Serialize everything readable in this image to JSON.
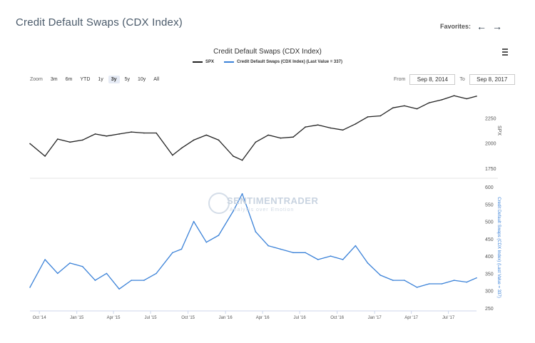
{
  "page": {
    "title": "Credit Default Swaps (CDX Index)"
  },
  "favorites": {
    "label": "Favorites:",
    "back_icon": "arrow-left-icon",
    "forward_icon": "arrow-right-icon"
  },
  "toolbar": {
    "zoom_label": "Zoom",
    "zoom_options": [
      "3m",
      "6m",
      "YTD",
      "1y",
      "3y",
      "5y",
      "10y",
      "All"
    ],
    "zoom_selected": "3y",
    "from_label": "From",
    "from_value": "Sep 8, 2014",
    "to_label": "To",
    "to_value": "Sep 8, 2017"
  },
  "watermark": {
    "name": "SENTIMENTRADER",
    "tagline": "Analysis over Emotion"
  },
  "chart_data": {
    "type": "line",
    "title": "Credit Default Swaps (CDX Index)",
    "legend": [
      "SPX",
      "Credit Default Swaps (CDX Index) (Last Value = 337)"
    ],
    "legend_placement": "top-center",
    "x_ticks": [
      "Oct '14",
      "Jan '15",
      "Apr '15",
      "Jul '15",
      "Oct '15",
      "Jan '16",
      "Apr '16",
      "Jul '16",
      "Oct '16",
      "Jan '17",
      "Apr '17",
      "Jul '17"
    ],
    "x_range": [
      "2014-09-08",
      "2017-09-08"
    ],
    "colors": {
      "spx": "#222222",
      "cdx": "#3b82d8"
    },
    "panels": [
      {
        "name": "SPX",
        "axis_label": "SPX",
        "axis_side": "right",
        "ylim": [
          1750,
          2500
        ],
        "y_ticks": [
          1750,
          2000,
          2250
        ],
        "x": [
          "2014-09-08",
          "2014-10-15",
          "2014-11-15",
          "2014-12-15",
          "2015-01-15",
          "2015-02-15",
          "2015-03-15",
          "2015-04-15",
          "2015-05-15",
          "2015-06-15",
          "2015-07-15",
          "2015-08-24",
          "2015-09-15",
          "2015-10-15",
          "2015-11-15",
          "2015-12-15",
          "2016-01-20",
          "2016-02-11",
          "2016-03-15",
          "2016-04-15",
          "2016-05-15",
          "2016-06-15",
          "2016-07-15",
          "2016-08-15",
          "2016-09-15",
          "2016-10-15",
          "2016-11-15",
          "2016-12-15",
          "2017-01-15",
          "2017-02-15",
          "2017-03-15",
          "2017-04-15",
          "2017-05-15",
          "2017-06-15",
          "2017-07-15",
          "2017-08-15",
          "2017-09-08"
        ],
        "values": [
          1995,
          1870,
          2040,
          2010,
          2030,
          2090,
          2070,
          2090,
          2110,
          2100,
          2100,
          1880,
          1950,
          2030,
          2080,
          2030,
          1870,
          1830,
          2010,
          2080,
          2050,
          2060,
          2160,
          2180,
          2150,
          2130,
          2190,
          2260,
          2270,
          2350,
          2370,
          2340,
          2400,
          2430,
          2470,
          2440,
          2465
        ]
      },
      {
        "name": "Credit Default Swaps (CDX Index)",
        "axis_label": "Credit Default Swaps (CDX Index) (Last Value = 337)",
        "axis_side": "right",
        "ylim": [
          250,
          600
        ],
        "y_ticks": [
          250,
          300,
          350,
          400,
          450,
          500,
          550,
          600
        ],
        "x": [
          "2014-09-08",
          "2014-10-15",
          "2014-11-15",
          "2014-12-15",
          "2015-01-15",
          "2015-02-15",
          "2015-03-15",
          "2015-04-15",
          "2015-05-15",
          "2015-06-15",
          "2015-07-15",
          "2015-08-24",
          "2015-09-15",
          "2015-10-15",
          "2015-11-15",
          "2015-12-15",
          "2016-01-20",
          "2016-02-11",
          "2016-03-15",
          "2016-04-15",
          "2016-05-15",
          "2016-06-15",
          "2016-07-15",
          "2016-08-15",
          "2016-09-15",
          "2016-10-15",
          "2016-11-15",
          "2016-12-15",
          "2017-01-15",
          "2017-02-15",
          "2017-03-15",
          "2017-04-15",
          "2017-05-15",
          "2017-06-15",
          "2017-07-15",
          "2017-08-15",
          "2017-09-08"
        ],
        "values": [
          310,
          390,
          350,
          380,
          370,
          330,
          350,
          305,
          330,
          330,
          350,
          410,
          420,
          500,
          440,
          460,
          530,
          580,
          470,
          430,
          420,
          410,
          410,
          390,
          400,
          390,
          430,
          380,
          345,
          330,
          330,
          310,
          320,
          320,
          330,
          325,
          337
        ]
      }
    ]
  }
}
